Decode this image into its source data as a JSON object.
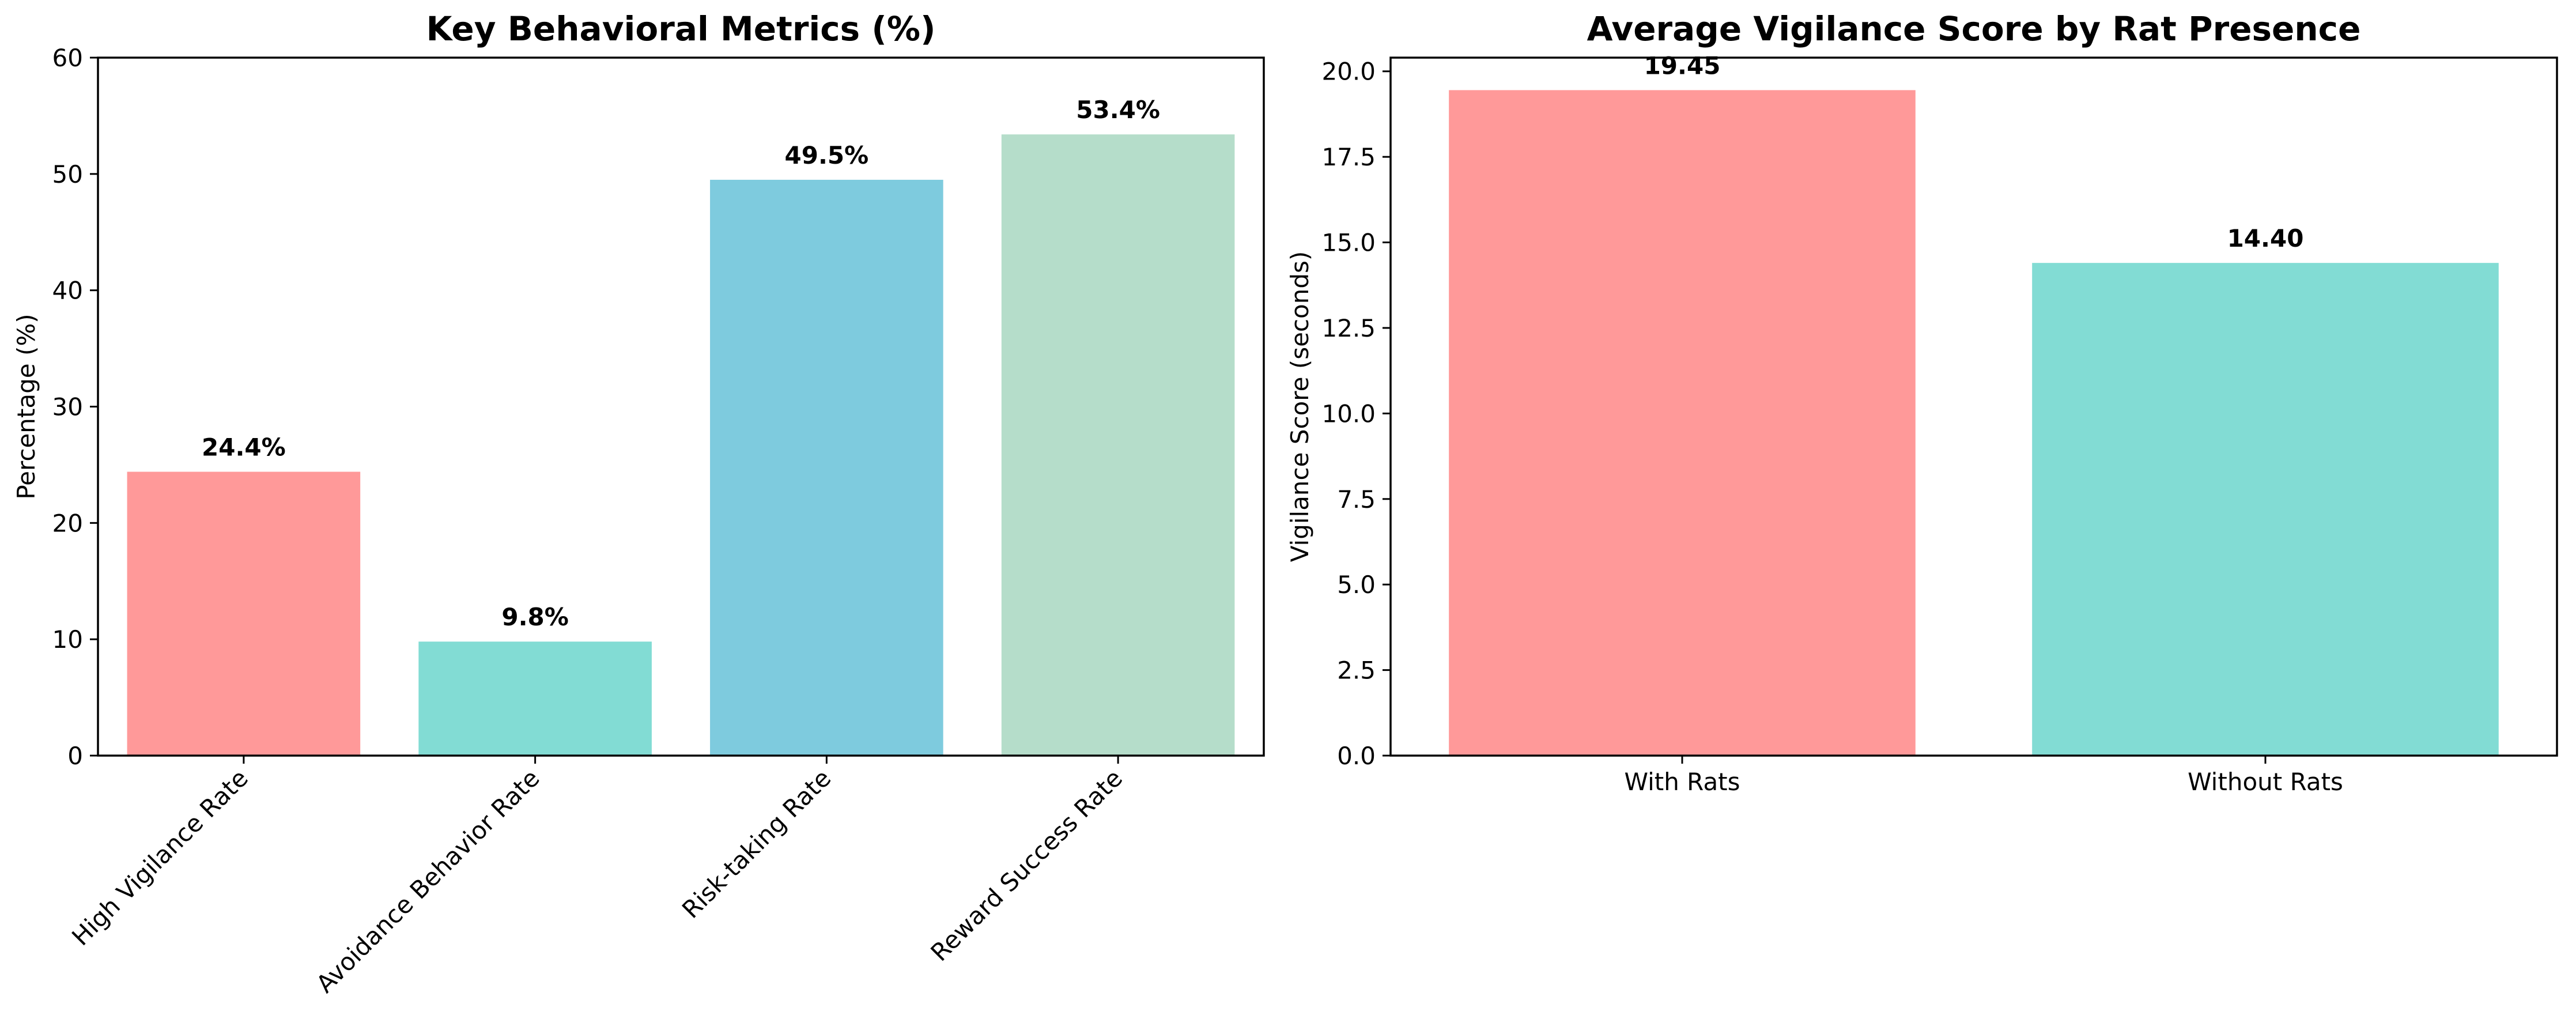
{
  "chart_data": [
    {
      "type": "bar",
      "title": "Key Behavioral Metrics (%)",
      "xlabel": "",
      "ylabel": "Percentage (%)",
      "ylim": [
        0,
        60
      ],
      "yticks": [
        0,
        10,
        20,
        30,
        40,
        50,
        60
      ],
      "ytick_labels": [
        "0",
        "10",
        "20",
        "30",
        "40",
        "50",
        "60"
      ],
      "categories": [
        "High Vigilance Rate",
        "Avoidance Behavior Rate",
        "Risk-taking Rate",
        "Reward Success Rate"
      ],
      "values": [
        24.4,
        9.8,
        49.5,
        53.4
      ],
      "value_labels": [
        "24.4%",
        "9.8%",
        "49.5%",
        "53.4%"
      ],
      "colors": [
        "#FF9999",
        "#82DCD4",
        "#7ECBDE",
        "#B5DDCA"
      ],
      "grid": false,
      "xtick_rotation": 45
    },
    {
      "type": "bar",
      "title": "Average Vigilance Score by Rat Presence",
      "xlabel": "",
      "ylabel": "Vigilance Score (seconds)",
      "ylim": [
        0,
        20.4
      ],
      "yticks": [
        0,
        2.5,
        5,
        7.5,
        10,
        12.5,
        15,
        17.5,
        20
      ],
      "ytick_labels": [
        "0.0",
        "2.5",
        "5.0",
        "7.5",
        "10.0",
        "12.5",
        "15.0",
        "17.5",
        "20.0"
      ],
      "categories": [
        "With Rats",
        "Without Rats"
      ],
      "values": [
        19.45,
        14.4
      ],
      "value_labels": [
        "19.45",
        "14.40"
      ],
      "colors": [
        "#FF9999",
        "#82DCD4"
      ],
      "grid": false,
      "xtick_rotation": 0
    }
  ]
}
